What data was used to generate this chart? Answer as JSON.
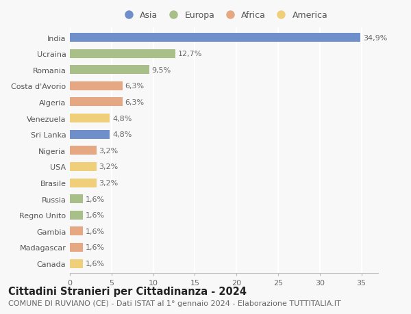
{
  "countries": [
    "India",
    "Ucraina",
    "Romania",
    "Costa d'Avorio",
    "Algeria",
    "Venezuela",
    "Sri Lanka",
    "Nigeria",
    "USA",
    "Brasile",
    "Russia",
    "Regno Unito",
    "Gambia",
    "Madagascar",
    "Canada"
  ],
  "values": [
    34.9,
    12.7,
    9.5,
    6.3,
    6.3,
    4.8,
    4.8,
    3.2,
    3.2,
    3.2,
    1.6,
    1.6,
    1.6,
    1.6,
    1.6
  ],
  "labels": [
    "34,9%",
    "12,7%",
    "9,5%",
    "6,3%",
    "6,3%",
    "4,8%",
    "4,8%",
    "3,2%",
    "3,2%",
    "3,2%",
    "1,6%",
    "1,6%",
    "1,6%",
    "1,6%",
    "1,6%"
  ],
  "continents": [
    "Asia",
    "Europa",
    "Europa",
    "Africa",
    "Africa",
    "America",
    "Asia",
    "Africa",
    "America",
    "America",
    "Europa",
    "Europa",
    "Africa",
    "Africa",
    "America"
  ],
  "colors": {
    "Asia": "#6e8fc9",
    "Europa": "#a8bf8a",
    "Africa": "#e5a882",
    "America": "#f0cf7a"
  },
  "legend_order": [
    "Asia",
    "Europa",
    "Africa",
    "America"
  ],
  "xlim": [
    0,
    37
  ],
  "xticks": [
    0,
    5,
    10,
    15,
    20,
    25,
    30,
    35
  ],
  "title": "Cittadini Stranieri per Cittadinanza - 2024",
  "subtitle": "COMUNE DI RUVIANO (CE) - Dati ISTAT al 1° gennaio 2024 - Elaborazione TUTTITALIA.IT",
  "bg_color": "#f8f8f8",
  "bar_height": 0.55,
  "label_fontsize": 8,
  "title_fontsize": 10.5,
  "subtitle_fontsize": 8,
  "tick_fontsize": 8,
  "legend_fontsize": 9
}
